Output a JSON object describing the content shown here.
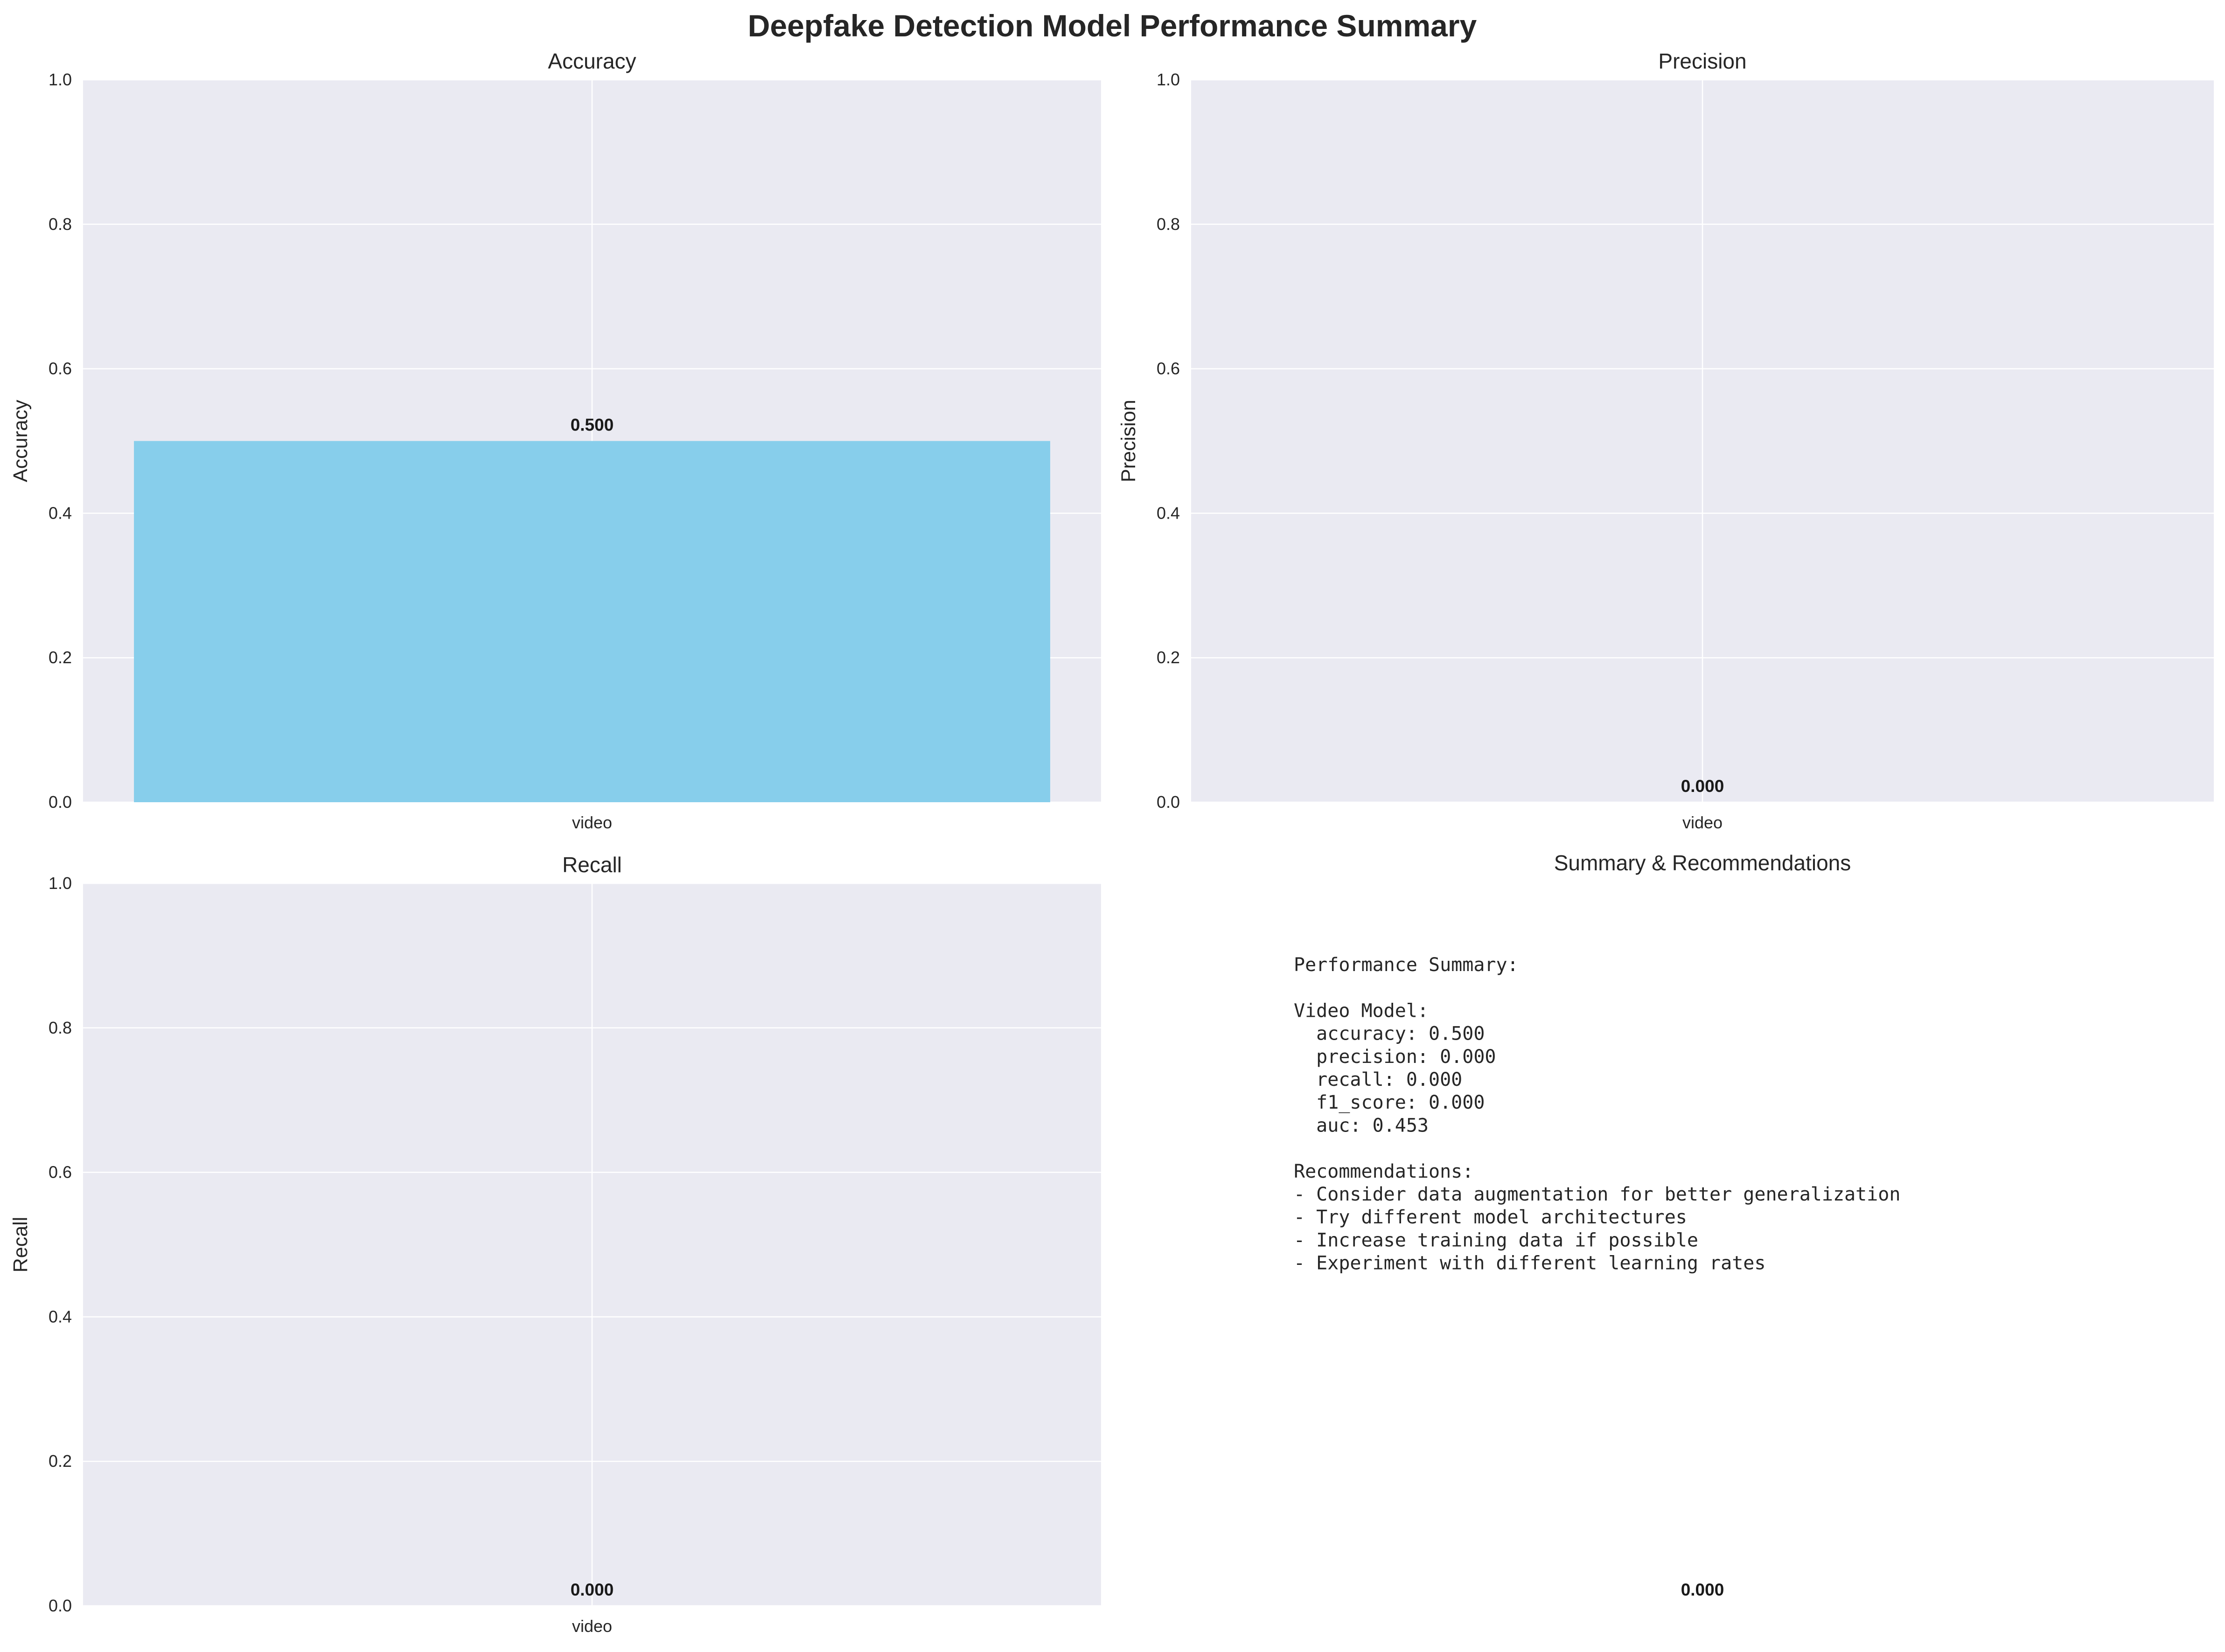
{
  "title": "Deepfake Detection Model Performance Summary",
  "colors": {
    "bar": "#87ceeb",
    "axes_bg": "#eaeaf2",
    "grid": "#ffffff",
    "text": "#262626"
  },
  "chart_data": [
    {
      "type": "bar",
      "title": "Accuracy",
      "ylabel": "Accuracy",
      "xlabel": "",
      "categories": [
        "video"
      ],
      "values": [
        0.5
      ],
      "data_labels": [
        "0.500"
      ],
      "ylim": [
        0,
        1
      ],
      "yticks": [
        "0.0",
        "0.2",
        "0.4",
        "0.6",
        "0.8",
        "1.0"
      ],
      "grid": true
    },
    {
      "type": "bar",
      "title": "Precision",
      "ylabel": "Precision",
      "xlabel": "",
      "categories": [
        "video"
      ],
      "values": [
        0.0
      ],
      "data_labels": [
        "0.000"
      ],
      "ylim": [
        0,
        1
      ],
      "yticks": [
        "0.0",
        "0.2",
        "0.4",
        "0.6",
        "0.8",
        "1.0"
      ],
      "grid": true
    },
    {
      "type": "bar",
      "title": "Recall",
      "ylabel": "Recall",
      "xlabel": "",
      "categories": [
        "video"
      ],
      "values": [
        0.0
      ],
      "data_labels": [
        "0.000"
      ],
      "ylim": [
        0,
        1
      ],
      "yticks": [
        "0.0",
        "0.2",
        "0.4",
        "0.6",
        "0.8",
        "1.0"
      ],
      "grid": true
    }
  ],
  "summary_panel": {
    "title": "Summary & Recommendations",
    "lines": [
      "Performance Summary:",
      "",
      "Video Model:",
      "  accuracy: 0.500",
      "  precision: 0.000",
      "  recall: 0.000",
      "  f1_score: 0.000",
      "  auc: 0.453",
      "",
      "Recommendations:",
      "- Consider data augmentation for better generalization",
      "- Try different model architectures",
      "- Increase training data if possible",
      "- Experiment with different learning rates"
    ],
    "stray_label": "0.000"
  }
}
